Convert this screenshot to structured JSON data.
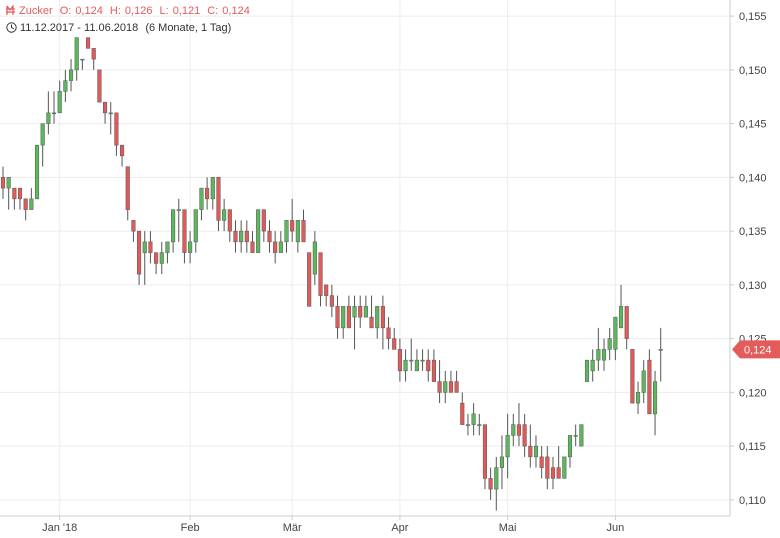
{
  "header": {
    "instrument": "Zucker",
    "open_label": "O:",
    "open": "0,124",
    "high_label": "H:",
    "high": "0,126",
    "low_label": "L:",
    "low": "0,121",
    "close_label": "C:",
    "close": "0,124",
    "range": "11.12.2017 - 11.06.2018",
    "period": "(6 Monate, 1 Tag)",
    "icons": [
      "currency-icon",
      "clock-icon"
    ]
  },
  "colors": {
    "up": "#5cb85c",
    "down": "#e05a5a",
    "grid": "#ececec",
    "last_price": "#e35b5b"
  },
  "chart_data": {
    "type": "candlestick",
    "ylim": [
      0.1085,
      0.1565
    ],
    "y_ticks": [
      "0,155",
      "0,150",
      "0,145",
      "0,140",
      "0,135",
      "0,130",
      "0,125",
      "0,120",
      "0,115",
      "0,110"
    ],
    "y_tick_values": [
      0.155,
      0.15,
      0.145,
      0.14,
      0.135,
      0.13,
      0.125,
      0.12,
      0.115,
      0.11
    ],
    "x_ticks": [
      "Jan '18",
      "Feb",
      "Mär",
      "Apr",
      "Mai",
      "Jun"
    ],
    "x_tick_index": [
      10,
      33,
      51,
      70,
      89,
      108
    ],
    "last_price": "0,124",
    "last_value": 0.124,
    "candles": [
      [
        0.14,
        0.141,
        0.138,
        0.139
      ],
      [
        0.139,
        0.14,
        0.137,
        0.14
      ],
      [
        0.139,
        0.139,
        0.137,
        0.138
      ],
      [
        0.139,
        0.139,
        0.137,
        0.138
      ],
      [
        0.138,
        0.138,
        0.136,
        0.137
      ],
      [
        0.137,
        0.139,
        0.137,
        0.138
      ],
      [
        0.138,
        0.143,
        0.138,
        0.143
      ],
      [
        0.143,
        0.145,
        0.141,
        0.145
      ],
      [
        0.145,
        0.148,
        0.144,
        0.146
      ],
      [
        0.146,
        0.148,
        0.145,
        0.146
      ],
      [
        0.146,
        0.149,
        0.146,
        0.148
      ],
      [
        0.148,
        0.15,
        0.147,
        0.149
      ],
      [
        0.149,
        0.151,
        0.148,
        0.15
      ],
      [
        0.15,
        0.153,
        0.149,
        0.153
      ],
      [
        0.151,
        0.151,
        0.15,
        0.151
      ],
      [
        0.153,
        0.153,
        0.152,
        0.152
      ],
      [
        0.152,
        0.152,
        0.15,
        0.151
      ],
      [
        0.15,
        0.15,
        0.147,
        0.147
      ],
      [
        0.147,
        0.147,
        0.145,
        0.146
      ],
      [
        0.146,
        0.147,
        0.144,
        0.146
      ],
      [
        0.146,
        0.146,
        0.142,
        0.143
      ],
      [
        0.143,
        0.143,
        0.141,
        0.142
      ],
      [
        0.141,
        0.141,
        0.136,
        0.137
      ],
      [
        0.136,
        0.136,
        0.134,
        0.135
      ],
      [
        0.135,
        0.135,
        0.13,
        0.131
      ],
      [
        0.133,
        0.135,
        0.13,
        0.134
      ],
      [
        0.134,
        0.135,
        0.132,
        0.133
      ],
      [
        0.133,
        0.133,
        0.131,
        0.132
      ],
      [
        0.132,
        0.134,
        0.131,
        0.133
      ],
      [
        0.133,
        0.134,
        0.132,
        0.134
      ],
      [
        0.134,
        0.137,
        0.133,
        0.137
      ],
      [
        0.137,
        0.138,
        0.134,
        0.137
      ],
      [
        0.137,
        0.137,
        0.132,
        0.133
      ],
      [
        0.133,
        0.135,
        0.132,
        0.134
      ],
      [
        0.134,
        0.137,
        0.133,
        0.137
      ],
      [
        0.137,
        0.139,
        0.136,
        0.139
      ],
      [
        0.139,
        0.14,
        0.137,
        0.138
      ],
      [
        0.138,
        0.14,
        0.137,
        0.14
      ],
      [
        0.14,
        0.14,
        0.135,
        0.136
      ],
      [
        0.136,
        0.138,
        0.135,
        0.137
      ],
      [
        0.137,
        0.137,
        0.134,
        0.135
      ],
      [
        0.135,
        0.136,
        0.133,
        0.134
      ],
      [
        0.134,
        0.136,
        0.133,
        0.135
      ],
      [
        0.135,
        0.136,
        0.133,
        0.134
      ],
      [
        0.134,
        0.135,
        0.133,
        0.133
      ],
      [
        0.133,
        0.137,
        0.133,
        0.137
      ],
      [
        0.137,
        0.137,
        0.134,
        0.135
      ],
      [
        0.135,
        0.136,
        0.133,
        0.134
      ],
      [
        0.134,
        0.135,
        0.132,
        0.133
      ],
      [
        0.133,
        0.135,
        0.133,
        0.134
      ],
      [
        0.134,
        0.136,
        0.133,
        0.136
      ],
      [
        0.136,
        0.138,
        0.134,
        0.135
      ],
      [
        0.134,
        0.136,
        0.133,
        0.136
      ],
      [
        0.136,
        0.137,
        0.134,
        0.134
      ],
      [
        0.133,
        0.133,
        0.128,
        0.128
      ],
      [
        0.131,
        0.135,
        0.13,
        0.134
      ],
      [
        0.133,
        0.133,
        0.128,
        0.129
      ],
      [
        0.13,
        0.13,
        0.128,
        0.129
      ],
      [
        0.129,
        0.13,
        0.127,
        0.128
      ],
      [
        0.128,
        0.129,
        0.125,
        0.126
      ],
      [
        0.126,
        0.128,
        0.125,
        0.128
      ],
      [
        0.128,
        0.129,
        0.126,
        0.126
      ],
      [
        0.127,
        0.129,
        0.124,
        0.128
      ],
      [
        0.128,
        0.129,
        0.126,
        0.127
      ],
      [
        0.127,
        0.129,
        0.127,
        0.128
      ],
      [
        0.127,
        0.129,
        0.126,
        0.126
      ],
      [
        0.126,
        0.128,
        0.125,
        0.128
      ],
      [
        0.128,
        0.129,
        0.124,
        0.126
      ],
      [
        0.126,
        0.127,
        0.124,
        0.125
      ],
      [
        0.125,
        0.126,
        0.124,
        0.124
      ],
      [
        0.124,
        0.125,
        0.121,
        0.122
      ],
      [
        0.122,
        0.124,
        0.121,
        0.123
      ],
      [
        0.123,
        0.125,
        0.122,
        0.123
      ],
      [
        0.122,
        0.124,
        0.122,
        0.123
      ],
      [
        0.123,
        0.124,
        0.122,
        0.123
      ],
      [
        0.123,
        0.124,
        0.121,
        0.122
      ],
      [
        0.123,
        0.124,
        0.121,
        0.121
      ],
      [
        0.121,
        0.123,
        0.119,
        0.12
      ],
      [
        0.12,
        0.122,
        0.119,
        0.121
      ],
      [
        0.121,
        0.122,
        0.12,
        0.12
      ],
      [
        0.121,
        0.122,
        0.12,
        0.12
      ],
      [
        0.119,
        0.12,
        0.117,
        0.117
      ],
      [
        0.117,
        0.118,
        0.116,
        0.117
      ],
      [
        0.117,
        0.119,
        0.116,
        0.118
      ],
      [
        0.117,
        0.118,
        0.116,
        0.117
      ],
      [
        0.117,
        0.117,
        0.111,
        0.112
      ],
      [
        0.112,
        0.113,
        0.11,
        0.111
      ],
      [
        0.111,
        0.114,
        0.109,
        0.113
      ],
      [
        0.113,
        0.116,
        0.111,
        0.114
      ],
      [
        0.114,
        0.118,
        0.112,
        0.116
      ],
      [
        0.116,
        0.118,
        0.115,
        0.117
      ],
      [
        0.117,
        0.119,
        0.115,
        0.116
      ],
      [
        0.117,
        0.118,
        0.114,
        0.115
      ],
      [
        0.115,
        0.117,
        0.113,
        0.114
      ],
      [
        0.114,
        0.116,
        0.113,
        0.115
      ],
      [
        0.114,
        0.115,
        0.112,
        0.113
      ],
      [
        0.114,
        0.115,
        0.111,
        0.112
      ],
      [
        0.113,
        0.114,
        0.111,
        0.112
      ],
      [
        0.113,
        0.115,
        0.112,
        0.112
      ],
      [
        0.112,
        0.114,
        0.112,
        0.114
      ],
      [
        0.114,
        0.116,
        0.113,
        0.116
      ],
      [
        0.116,
        0.117,
        0.115,
        0.116
      ],
      [
        0.115,
        0.117,
        0.115,
        0.117
      ],
      [
        0.121,
        0.123,
        0.121,
        0.123
      ],
      [
        0.122,
        0.124,
        0.121,
        0.123
      ],
      [
        0.123,
        0.126,
        0.122,
        0.124
      ],
      [
        0.123,
        0.125,
        0.122,
        0.124
      ],
      [
        0.124,
        0.126,
        0.123,
        0.125
      ],
      [
        0.124,
        0.127,
        0.123,
        0.127
      ],
      [
        0.126,
        0.13,
        0.126,
        0.128
      ],
      [
        0.128,
        0.128,
        0.124,
        0.125
      ],
      [
        0.124,
        0.124,
        0.119,
        0.119
      ],
      [
        0.119,
        0.121,
        0.118,
        0.12
      ],
      [
        0.12,
        0.123,
        0.119,
        0.122
      ],
      [
        0.123,
        0.124,
        0.118,
        0.118
      ],
      [
        0.118,
        0.122,
        0.116,
        0.121
      ],
      [
        0.124,
        0.126,
        0.121,
        0.124
      ]
    ]
  }
}
